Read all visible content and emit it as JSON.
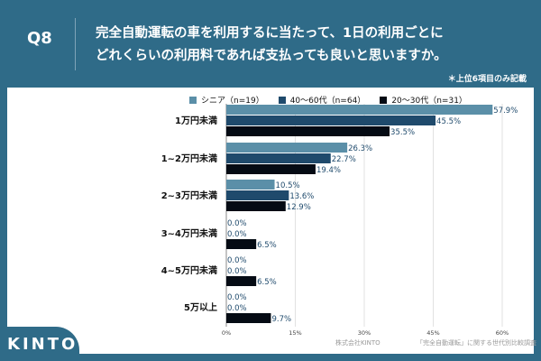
{
  "header": {
    "question_no": "Q8",
    "title_line1": "完全自動運転の車を利用するに当たって、1日の利用ごとに",
    "title_line2": "どれくらいの利用料であれば支払っても良いと思いますか。",
    "note": "＊上位6項目のみ記載"
  },
  "footer": {
    "logo": "KINTO",
    "company": "株式会社KINTO",
    "survey": "「完全自動運転」に関する世代別比較調査"
  },
  "chart_data": {
    "type": "bar",
    "orientation": "horizontal",
    "categories": [
      "1万円未満",
      "1~2万円未満",
      "2~3万円未満",
      "3~4万円未満",
      "4~5万円未満",
      "5万以上"
    ],
    "series": [
      {
        "name": "シニア（n=19）",
        "color": "#5b8fa8",
        "values": [
          57.9,
          26.3,
          10.5,
          0.0,
          0.0,
          0.0
        ]
      },
      {
        "name": "40～60代（n=64）",
        "color": "#1f4a6c",
        "values": [
          45.5,
          22.7,
          13.6,
          0.0,
          0.0,
          0.0
        ]
      },
      {
        "name": "20～30代（n=31）",
        "color": "#050b14",
        "values": [
          35.5,
          19.4,
          12.9,
          6.5,
          6.5,
          9.7
        ]
      }
    ],
    "xlim": [
      0,
      60
    ],
    "xticks": [
      "0%",
      "15%",
      "30%",
      "45%",
      "60%"
    ],
    "grid": true,
    "legend": "top"
  }
}
